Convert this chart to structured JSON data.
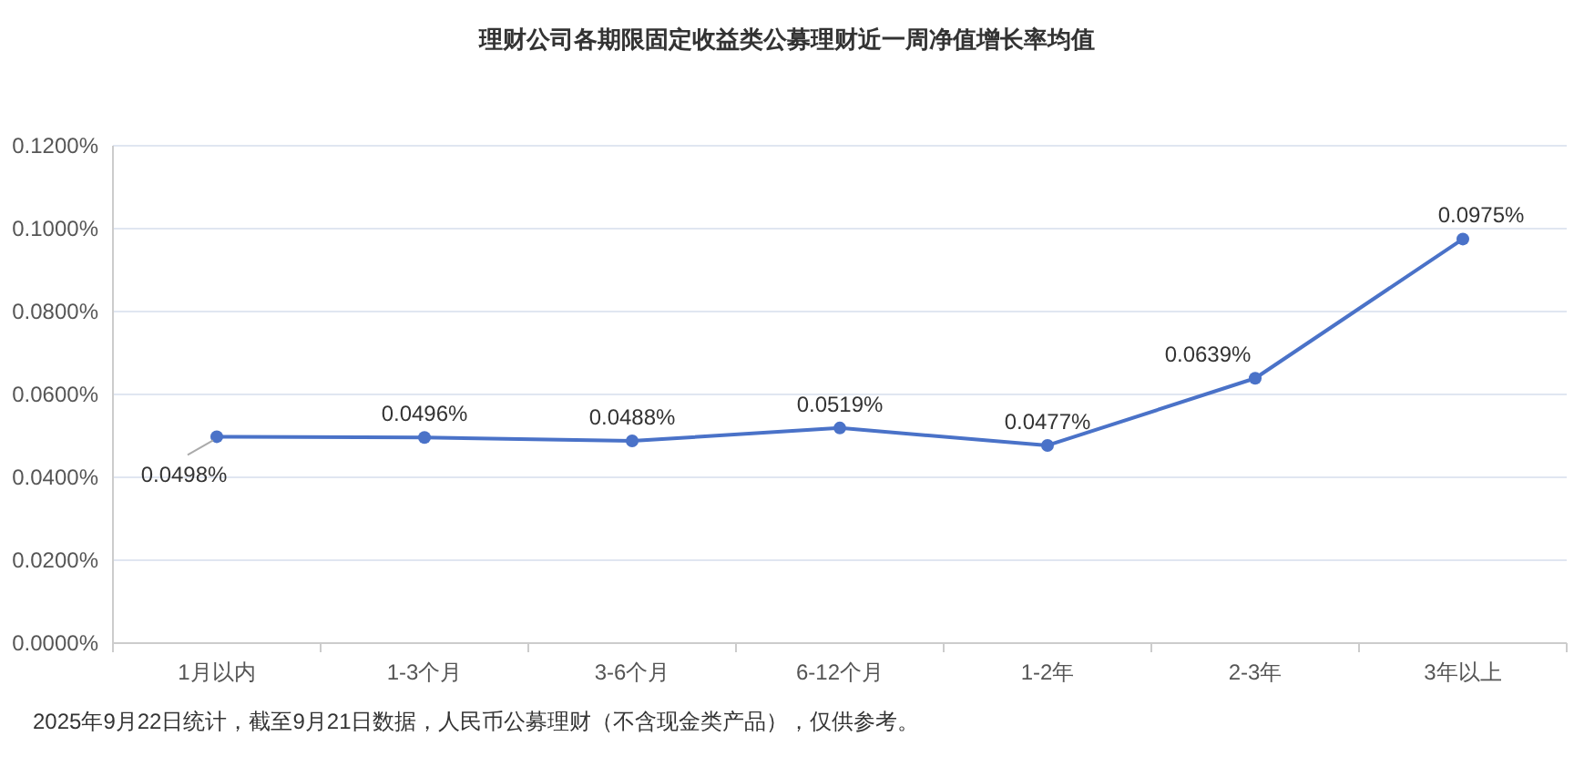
{
  "chart_data": {
    "type": "line",
    "title": "理财公司各期限固定收益类公募理财近一周净值增长率均值",
    "categories": [
      "1月以内",
      "1-3个月",
      "3-6个月",
      "6-12个月",
      "1-2年",
      "2-3年",
      "3年以上"
    ],
    "series": [
      {
        "color": "#4a72c8",
        "values": [
          0.0498,
          0.0496,
          0.0488,
          0.0519,
          0.0477,
          0.0639,
          0.0975
        ],
        "value_labels": [
          "0.0498%",
          "0.0496%",
          "0.0488%",
          "0.0519%",
          "0.0477%",
          "0.0639%",
          "0.0975%"
        ]
      }
    ],
    "ylim": [
      0,
      0.12
    ],
    "yticks": [
      {
        "value": 0,
        "label": "0.0000%"
      },
      {
        "value": 0.02,
        "label": "0.0200%"
      },
      {
        "value": 0.04,
        "label": "0.0400%"
      },
      {
        "value": 0.06,
        "label": "0.0600%"
      },
      {
        "value": 0.08,
        "label": "0.0800%"
      },
      {
        "value": 0.1,
        "label": "0.1000%"
      },
      {
        "value": 0.12,
        "label": "0.1200%"
      }
    ],
    "grid": "y",
    "marker": "circle",
    "line_style": "solid",
    "annotations": [
      "2025年9月22日统计，截至9月21日数据，人民币公募理财（不含现金类产品），仅供参考。"
    ]
  }
}
